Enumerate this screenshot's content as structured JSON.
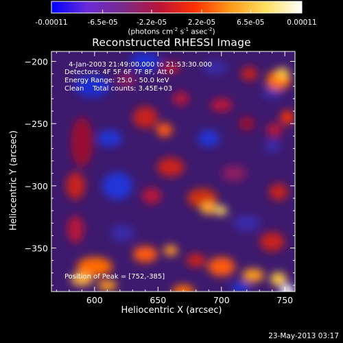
{
  "colorbar": {
    "tick_labels": [
      "-0.00011",
      "-6.5e-05",
      "-2.2e-05",
      "2.2e-05",
      "6.5e-05",
      "0.00011"
    ],
    "ticks": [
      -0.00011,
      -6.5e-05,
      -2.2e-05,
      2.2e-05,
      6.5e-05,
      0.00011
    ],
    "range": [
      -0.00011,
      0.00011
    ],
    "units_prefix": "(photons cm",
    "units_mid1": " s",
    "units_mid2": " asec",
    "units_suffix": ")",
    "units_exp1": "-2",
    "units_exp2": "-1",
    "units_exp3": "-2",
    "colors": [
      "#0000ff",
      "#6a2bd8",
      "#7a2a8a",
      "#b8143a",
      "#ff3000",
      "#ff9a1a",
      "#ffe060",
      "#ffffff"
    ]
  },
  "chart_data": {
    "type": "heatmap",
    "title": "Reconstructed RHESSI Image",
    "xlabel": "Heliocentric X (arcsec)",
    "ylabel": "Heliocentric Y (arcsec)",
    "xlim": [
      566,
      758
    ],
    "ylim": [
      -385,
      -192
    ],
    "x_ticks": [
      600,
      650,
      700,
      750
    ],
    "y_ticks": [
      -200,
      -250,
      -300,
      -350
    ],
    "x_tick_labels": [
      "600",
      "650",
      "700",
      "750"
    ],
    "y_tick_labels": [
      "−200",
      "−250",
      "−300",
      "−350"
    ],
    "annotations": {
      "time": "4-Jan-2003 21:49:00.000 to 21:53:30.000",
      "detectors": "Detectors: 4F 5F 6F 7F 8F, Att 0",
      "energy": "Energy Range: 25.0 - 50.0 keV",
      "clean": "Clean    Total counts: 3.45E+03",
      "peak": "Position of Peak = [752,-385]"
    },
    "peak_position": [
      752,
      -385
    ],
    "total_counts": 3450
  },
  "footer": {
    "timestamp": "23-May-2013 03:17"
  }
}
